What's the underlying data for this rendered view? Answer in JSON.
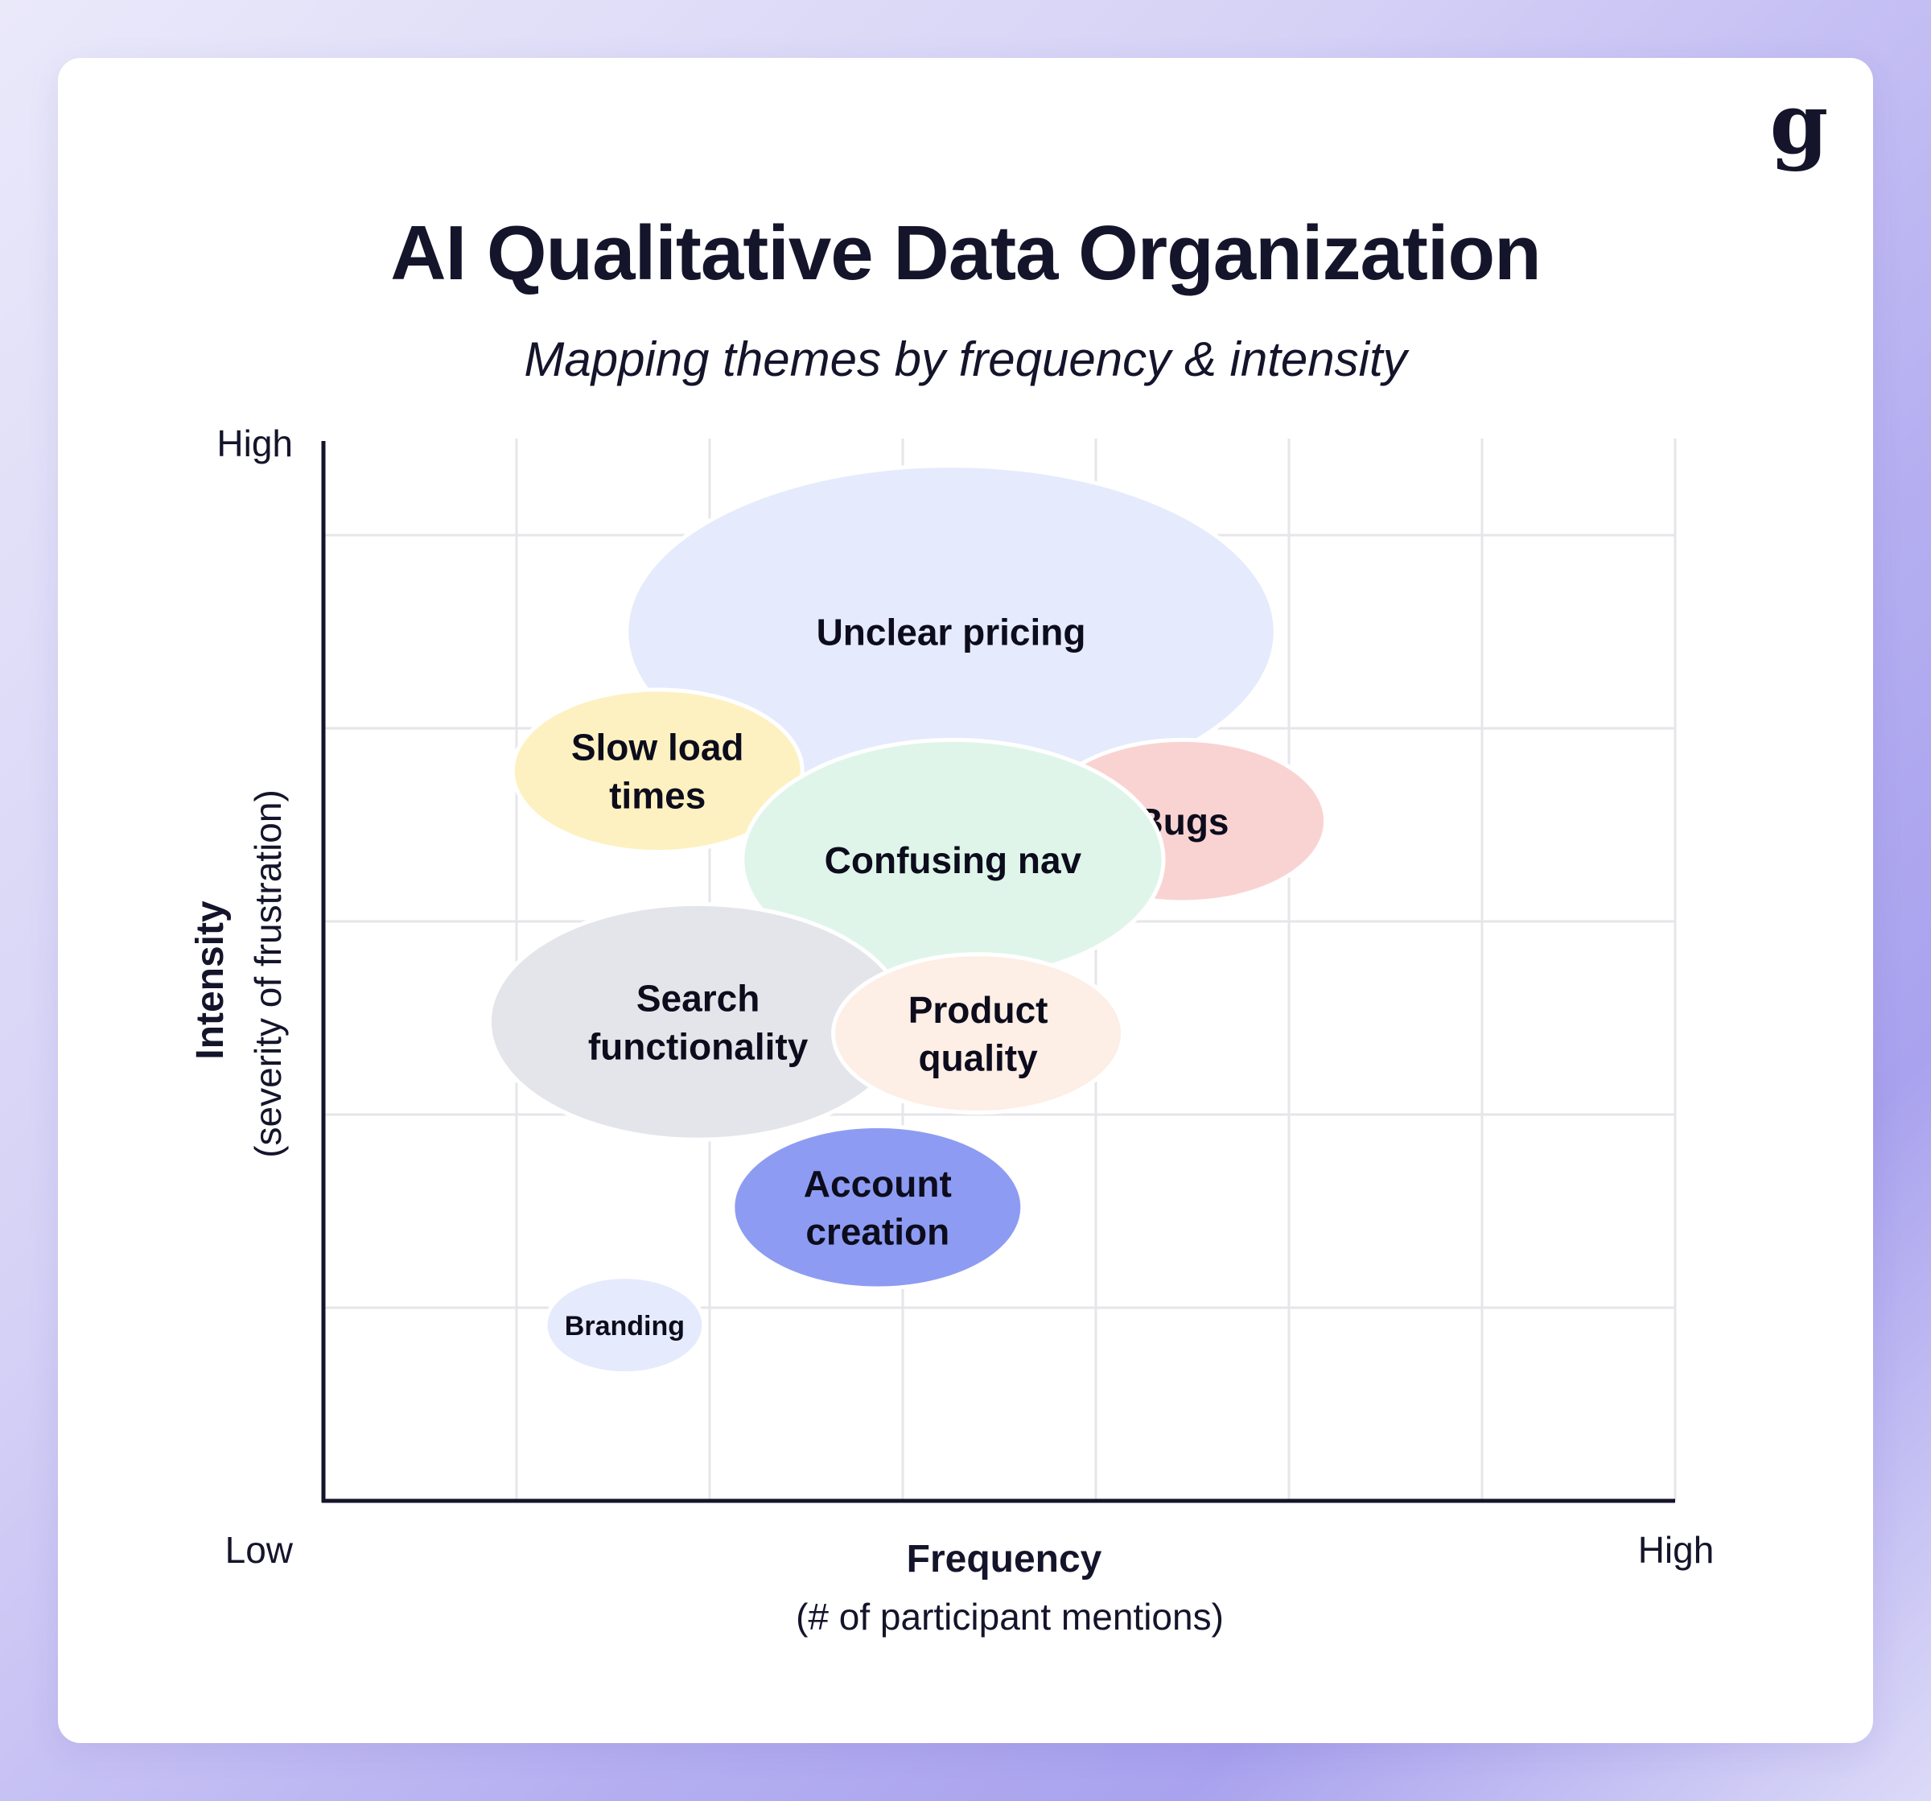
{
  "header": {
    "title": "AI Qualitative Data Organization",
    "subtitle": "Mapping themes by frequency & intensity"
  },
  "logo": {
    "glyph": "g"
  },
  "chart_data": {
    "type": "bubble",
    "title": "AI Qualitative Data Organization",
    "subtitle": "Mapping themes by frequency & intensity",
    "xlabel": "Frequency",
    "xlabel_sub": "(# of participant mentions)",
    "ylabel": "Intensity",
    "ylabel_sub": "(severity of frustration)",
    "x_tick_labels": {
      "low": "Low",
      "high": "High"
    },
    "y_tick_labels": {
      "low": "",
      "high": "High"
    },
    "xlim": [
      0,
      7
    ],
    "ylim": [
      0,
      5.5
    ],
    "grid": true,
    "series": [
      {
        "name": "Unclear pricing",
        "lines": [
          "Unclear pricing"
        ],
        "x": 3.25,
        "y": 4.5,
        "rx": 1.68,
        "ry": 0.86,
        "color": "#e5eafc",
        "font": 46
      },
      {
        "name": "Slow load times",
        "lines": [
          "Slow load",
          "times"
        ],
        "x": 1.73,
        "y": 3.78,
        "rx": 0.75,
        "ry": 0.42,
        "color": "#fdf1c2",
        "font": 46
      },
      {
        "name": "Bugs",
        "lines": [
          "Bugs"
        ],
        "x": 4.45,
        "y": 3.52,
        "rx": 0.74,
        "ry": 0.42,
        "color": "#f9d3d2",
        "font": 46
      },
      {
        "name": "Confusing nav",
        "lines": [
          "Confusing nav"
        ],
        "x": 3.26,
        "y": 3.32,
        "rx": 1.09,
        "ry": 0.62,
        "color": "#dff5ea",
        "font": 46
      },
      {
        "name": "Search functionality",
        "lines": [
          "Search",
          "functionality"
        ],
        "x": 1.94,
        "y": 2.48,
        "rx": 1.08,
        "ry": 0.61,
        "color": "#e4e5ea",
        "font": 46
      },
      {
        "name": "Product quality",
        "lines": [
          "Product",
          "quality"
        ],
        "x": 3.39,
        "y": 2.42,
        "rx": 0.75,
        "ry": 0.41,
        "color": "#fdeee6",
        "font": 46
      },
      {
        "name": "Account creation",
        "lines": [
          "Account",
          "creation"
        ],
        "x": 2.87,
        "y": 1.52,
        "rx": 0.75,
        "ry": 0.42,
        "color": "#8d9cf2",
        "font": 46
      },
      {
        "name": "Branding",
        "lines": [
          "Branding"
        ],
        "x": 1.56,
        "y": 0.91,
        "rx": 0.41,
        "ry": 0.25,
        "color": "#e5eafc",
        "font": 34
      }
    ]
  }
}
